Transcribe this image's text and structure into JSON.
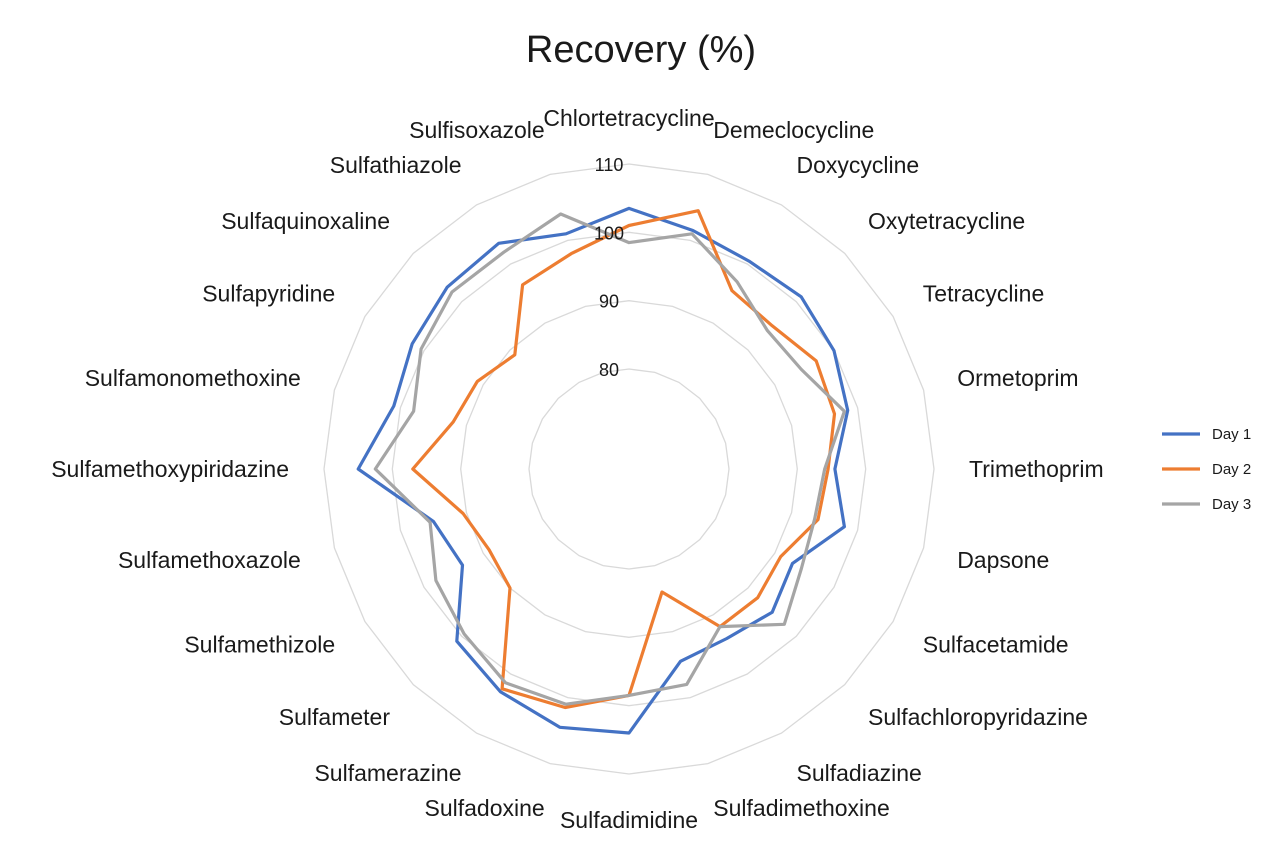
{
  "chart_data": {
    "type": "radar",
    "title": "Recovery (%)",
    "rlim": [
      80,
      110
    ],
    "ticks": [
      80,
      90,
      100,
      110
    ],
    "grid": true,
    "legend_position": "right",
    "categories": [
      "Chlortetracycline",
      "Demeclocycline",
      "Doxycycline",
      "Oxytetracycline",
      "Tetracycline",
      "Ormetoprim",
      "Trimethoprim",
      "Dapsone",
      "Sulfacetamide",
      "Sulfachloropyridazine",
      "Sulfadiazine",
      "Sulfadimethoxine",
      "Sulfadimidine",
      "Sulfadoxine",
      "Sulfamerazine",
      "Sulfameter",
      "Sulfamethizole",
      "Sulfamethoxazole",
      "Sulfamethoxypiridazine",
      "Sulfamonomethoxine",
      "Sulfapyridine",
      "Sulfaquinoxaline",
      "Sulfathiazole",
      "Sulfisoxazole"
    ],
    "series": [
      {
        "name": "Day 1",
        "color": "#4472c4",
        "values": [
          103.5,
          101.5,
          100.5,
          101,
          100,
          98.5,
          95.5,
          98,
          93,
          95,
          94,
          94.5,
          104,
          104.5,
          103,
          101,
          93.5,
          95,
          105,
          101,
          102,
          103,
          103.5,
          101
        ]
      },
      {
        "name": "Day 2",
        "color": "#ed7d31",
        "values": [
          101,
          104.5,
          95.5,
          95,
          97,
          96.5,
          94.5,
          94,
          91,
          92,
          92,
          84,
          98.5,
          101.5,
          102.5,
          90,
          89,
          90.5,
          97,
          92,
          91,
          89,
          96.5,
          98
        ]
      },
      {
        "name": "Day 3",
        "color": "#a5a5a5",
        "values": [
          98.5,
          101,
          97,
          94,
          94.5,
          98,
          94,
          93.5,
          94.5,
          97.5,
          92,
          98,
          98.5,
          101,
          101.5,
          99.5,
          98,
          95.5,
          102.5,
          98,
          100.5,
          102,
          102,
          104
        ]
      }
    ]
  }
}
